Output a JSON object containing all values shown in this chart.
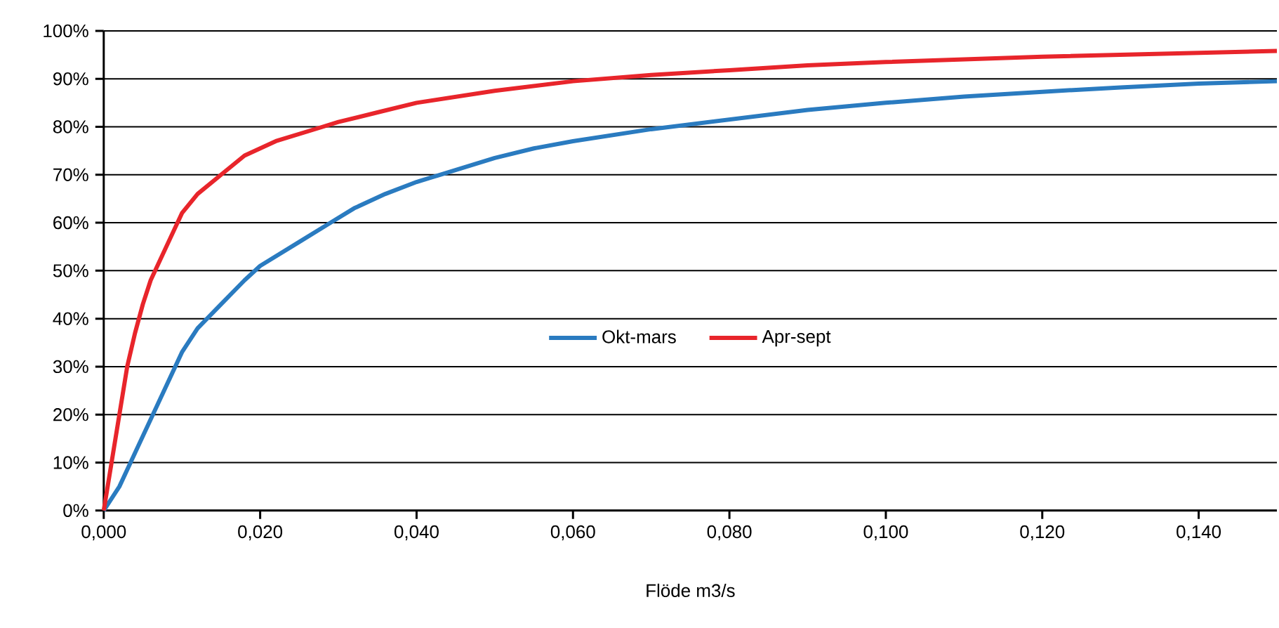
{
  "chart_data": {
    "type": "line",
    "xlabel": "Flöde m3/s",
    "xlim": [
      0,
      0.15
    ],
    "xticks": [
      {
        "value": 0,
        "label": "0,000"
      },
      {
        "value": 0.02,
        "label": "0,020"
      },
      {
        "value": 0.04,
        "label": "0,040"
      },
      {
        "value": 0.06,
        "label": "0,060"
      },
      {
        "value": 0.08,
        "label": "0,080"
      },
      {
        "value": 0.1,
        "label": "0,100"
      },
      {
        "value": 0.12,
        "label": "0,120"
      },
      {
        "value": 0.14,
        "label": "0,140"
      }
    ],
    "ylim": [
      0,
      100
    ],
    "yticks": [
      {
        "value": 0,
        "label": "0%"
      },
      {
        "value": 10,
        "label": "10%"
      },
      {
        "value": 20,
        "label": "20%"
      },
      {
        "value": 30,
        "label": "30%"
      },
      {
        "value": 40,
        "label": "40%"
      },
      {
        "value": 50,
        "label": "50%"
      },
      {
        "value": 60,
        "label": "60%"
      },
      {
        "value": 70,
        "label": "70%"
      },
      {
        "value": 80,
        "label": "80%"
      },
      {
        "value": 90,
        "label": "90%"
      },
      {
        "value": 100,
        "label": "100%"
      }
    ],
    "grid": "y",
    "legend": "center",
    "marker": "none",
    "line_style": "solid",
    "series": [
      {
        "name": "Okt-mars",
        "color": "#2a7bc0",
        "x": [
          0,
          0.002,
          0.004,
          0.006,
          0.008,
          0.01,
          0.012,
          0.015,
          0.018,
          0.02,
          0.025,
          0.029,
          0.032,
          0.036,
          0.04,
          0.043,
          0.05,
          0.055,
          0.06,
          0.07,
          0.08,
          0.09,
          0.1,
          0.11,
          0.12,
          0.13,
          0.14,
          0.15
        ],
        "values": [
          0,
          5,
          12,
          19,
          26,
          33,
          38,
          43,
          48,
          51,
          56,
          60,
          63,
          66,
          68.5,
          70,
          73.5,
          75.5,
          77,
          79.5,
          81.5,
          83.5,
          85,
          86.3,
          87.3,
          88.2,
          89,
          89.5
        ]
      },
      {
        "name": "Apr-sept",
        "color": "#e8252b",
        "x": [
          0,
          0.001,
          0.002,
          0.003,
          0.004,
          0.005,
          0.006,
          0.008,
          0.01,
          0.012,
          0.015,
          0.018,
          0.022,
          0.028,
          0.03,
          0.035,
          0.04,
          0.05,
          0.06,
          0.07,
          0.08,
          0.09,
          0.1,
          0.12,
          0.15
        ],
        "values": [
          0,
          10,
          20,
          30,
          37,
          43,
          48,
          55,
          62,
          66,
          70,
          74,
          77,
          80,
          81,
          83,
          85,
          87.5,
          89.5,
          90.8,
          91.8,
          92.8,
          93.5,
          94.6,
          95.8
        ]
      }
    ]
  }
}
